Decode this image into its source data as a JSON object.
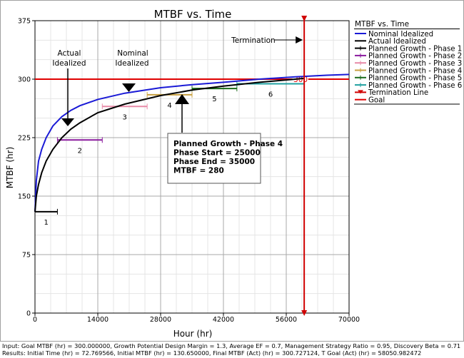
{
  "chart_data": {
    "type": "line",
    "title": "MTBF vs. Time",
    "xlabel": "Hour (hr)",
    "ylabel": "MTBF (hr)",
    "xlim": [
      0,
      70000
    ],
    "ylim": [
      0,
      375
    ],
    "x_ticks": [
      0,
      14000,
      28000,
      42000,
      56000,
      70000
    ],
    "y_ticks": [
      0,
      75,
      150,
      225,
      300,
      375
    ],
    "grid": true,
    "legend": {
      "title": "MTBF vs. Time",
      "placement": "right",
      "entries": [
        {
          "label": "Nominal Idealized",
          "color": "#1a1ad6"
        },
        {
          "label": "Actual Idealized",
          "color": "#000000"
        },
        {
          "label": "Planned Growth - Phase 1",
          "color": "#000000"
        },
        {
          "label": "Planned Growth - Phase 2",
          "color": "#8a1a9e"
        },
        {
          "label": "Planned Growth - Phase 3",
          "color": "#e88aa8"
        },
        {
          "label": "Planned Growth - Phase 4",
          "color": "#c8a040"
        },
        {
          "label": "Planned Growth - Phase 5",
          "color": "#1a6a1a"
        },
        {
          "label": "Planned Growth - Phase 6",
          "color": "#20a0a0"
        },
        {
          "label": "Termination Line",
          "color": "#d00000"
        },
        {
          "label": "Goal",
          "color": "#e00000"
        }
      ]
    },
    "series": [
      {
        "name": "Nominal Idealized",
        "color": "#1a1ad6",
        "x": [
          0,
          300,
          800,
          1500,
          2500,
          4000,
          6000,
          8000,
          10000,
          14000,
          20000,
          28000,
          35000,
          42000,
          50000,
          58000,
          65000,
          70000
        ],
        "y": [
          130,
          170,
          195,
          210,
          225,
          240,
          252,
          260,
          266,
          274,
          282,
          289,
          293,
          296,
          300,
          303,
          305,
          306
        ]
      },
      {
        "name": "Actual Idealized",
        "color": "#000000",
        "x": [
          0,
          300,
          800,
          1500,
          2500,
          4000,
          6000,
          8000,
          10000,
          14000,
          20000,
          28000,
          35000,
          42000,
          50000,
          56000,
          60000
        ],
        "y": [
          130,
          150,
          165,
          180,
          195,
          210,
          225,
          236,
          244,
          257,
          268,
          279,
          286,
          291,
          296,
          299,
          301
        ]
      }
    ],
    "phases": [
      {
        "name": "Planned Growth - Phase 1",
        "label": "1",
        "start": 0,
        "end": 5000,
        "mtbf": 130,
        "color": "#000000"
      },
      {
        "name": "Planned Growth - Phase 2",
        "label": "2",
        "start": 5000,
        "end": 15000,
        "mtbf": 222,
        "color": "#8a1a9e"
      },
      {
        "name": "Planned Growth - Phase 3",
        "label": "3",
        "start": 15000,
        "end": 25000,
        "mtbf": 265,
        "color": "#e88aa8"
      },
      {
        "name": "Planned Growth - Phase 4",
        "label": "4",
        "start": 25000,
        "end": 35000,
        "mtbf": 280,
        "color": "#c8a040"
      },
      {
        "name": "Planned Growth - Phase 5",
        "label": "5",
        "start": 35000,
        "end": 45000,
        "mtbf": 288,
        "color": "#1a6a1a"
      },
      {
        "name": "Planned Growth - Phase 6",
        "label": "6",
        "start": 45000,
        "end": 60000,
        "mtbf": 294,
        "color": "#20a0a0"
      }
    ],
    "goal": {
      "name": "Goal",
      "value": 300,
      "label": "300",
      "color": "#e00000"
    },
    "termination": {
      "name": "Termination Line",
      "x": 60000,
      "label": "Termination",
      "color": "#d00000"
    },
    "annotations": [
      {
        "text": [
          "Actual",
          "Idealized"
        ]
      },
      {
        "text": [
          "Nominal",
          "Idealized"
        ]
      }
    ],
    "tooltip": {
      "lines": [
        "Planned Growth - Phase 4",
        "Phase Start = 25000",
        "Phase End = 35000",
        "MTBF = 280"
      ]
    }
  },
  "footer": {
    "input": "Input: Goal MTBF (hr) = 300.000000, Growth Potential Design Margin = 1.3, Average EF = 0.7, Management Strategy Ratio = 0.95, Discovery Beta = 0.71",
    "results": "Results: Initial Time (hr) = 72.769566, Initial MTBF (hr) = 130.650000, Final MTBF (Act) (hr) = 300.727124, T Goal (Act) (hr) = 58050.982472"
  }
}
